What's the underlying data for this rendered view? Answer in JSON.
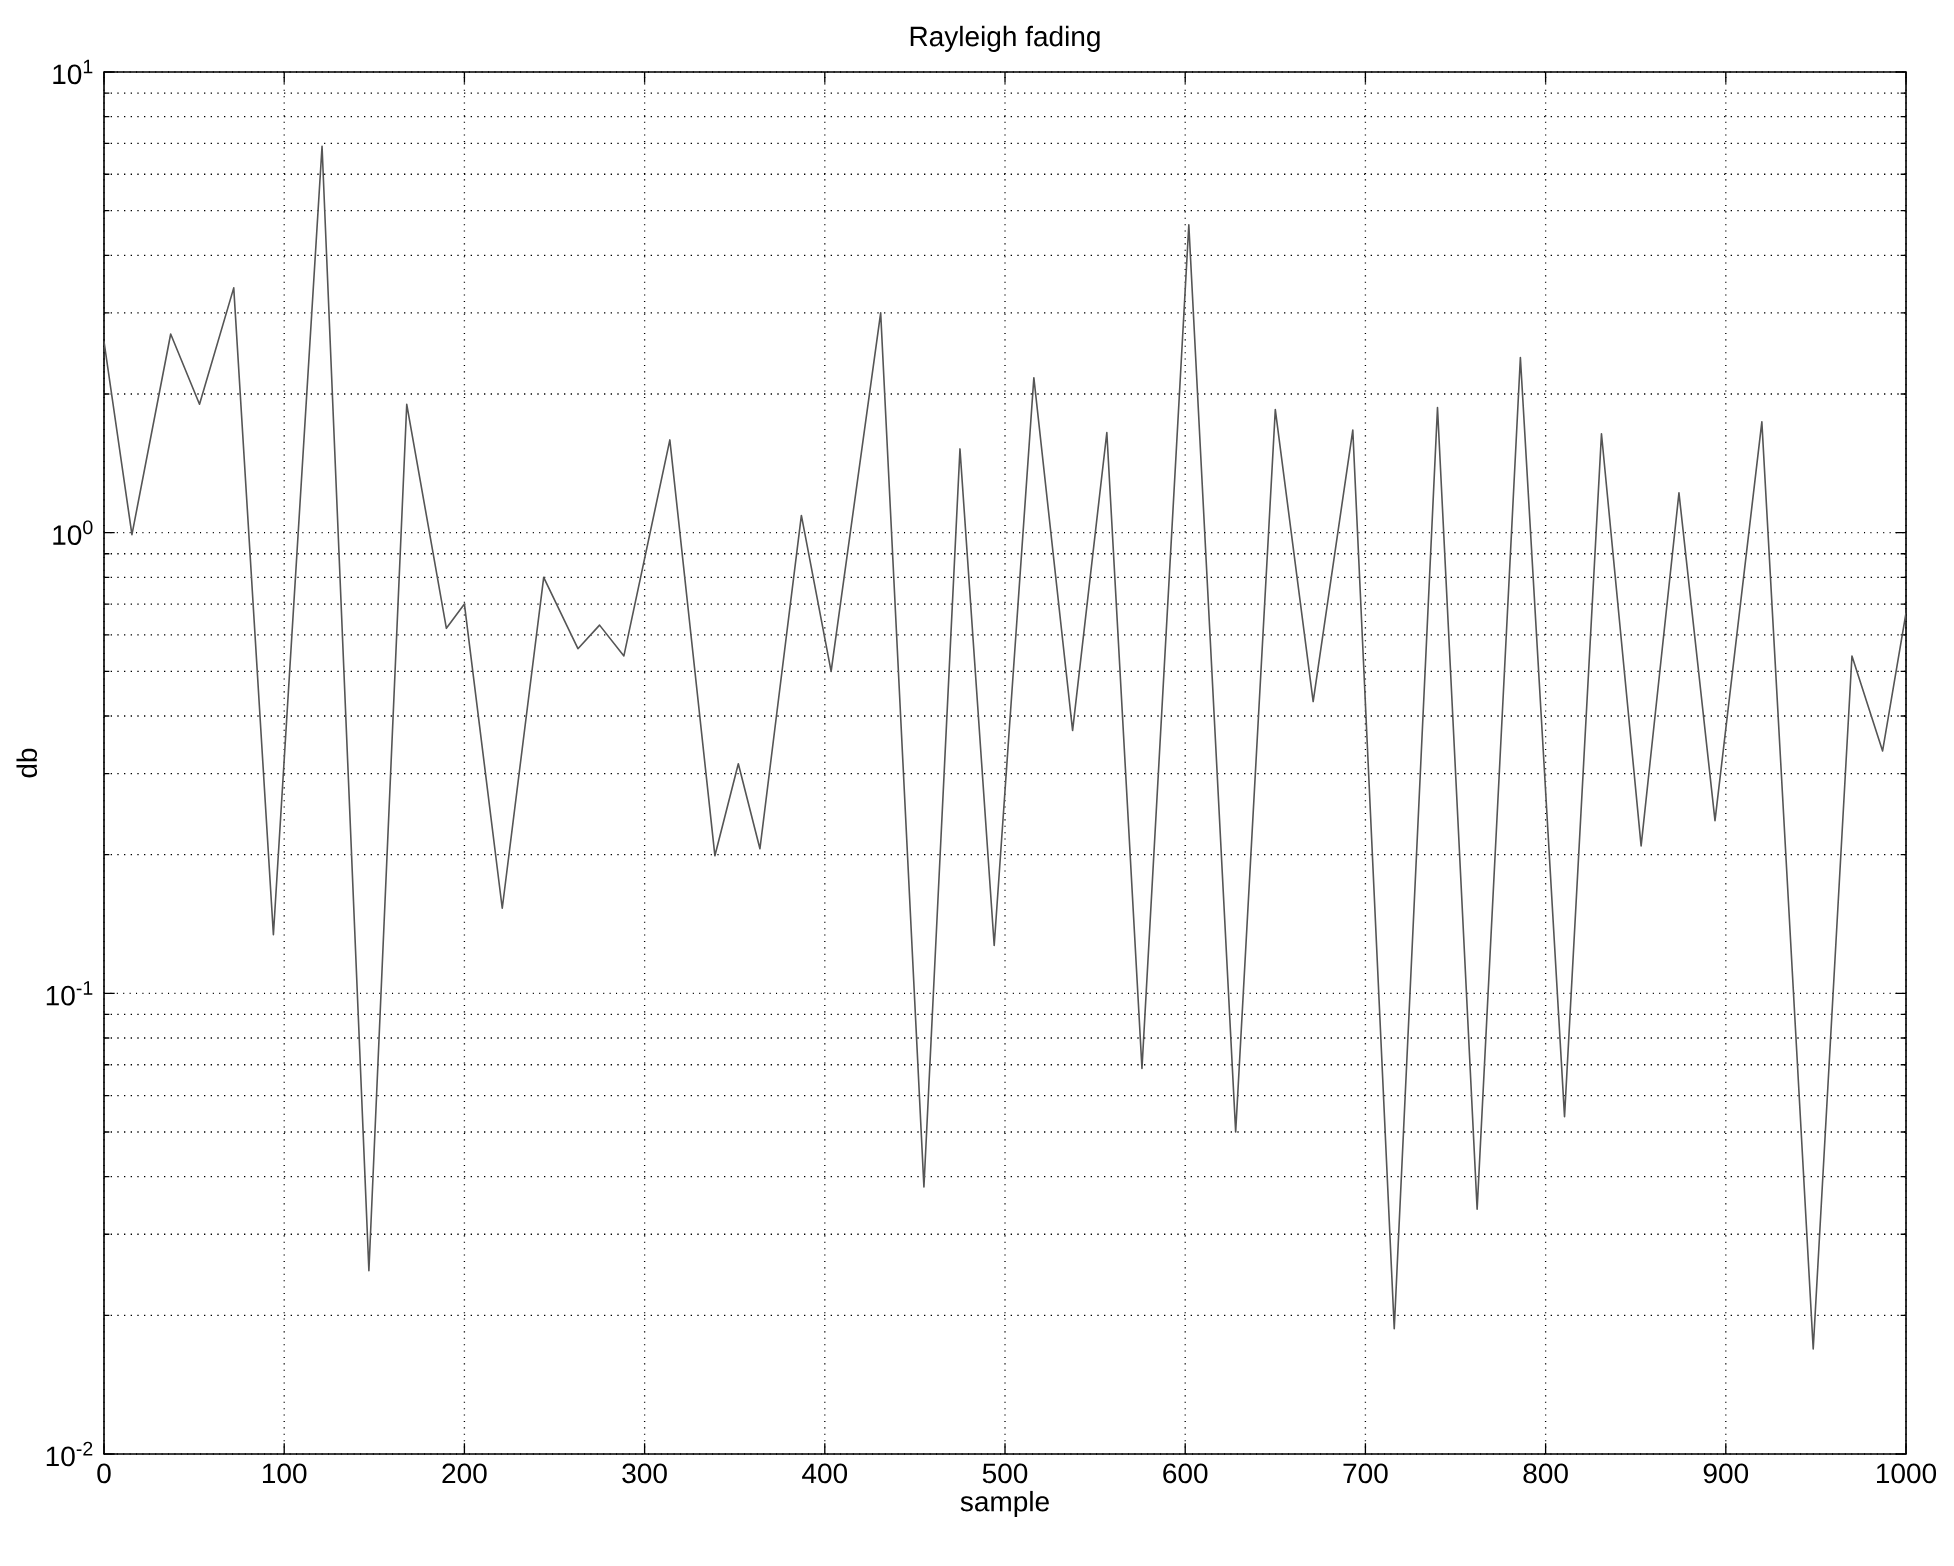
{
  "chart_data": {
    "type": "line",
    "title": "Rayleigh fading",
    "xlabel": "sample",
    "ylabel": "db",
    "log": "y",
    "grid": true,
    "line_style": "solid",
    "marker": "none",
    "xlim": [
      0,
      1000
    ],
    "ylim": [
      0.01,
      10
    ],
    "xticks": [
      0,
      100,
      200,
      300,
      400,
      500,
      600,
      700,
      800,
      900,
      1000
    ],
    "yticks": [
      {
        "value": 0.01,
        "label": "10$^{-2}$"
      },
      {
        "value": 0.1,
        "label": "10$^{-1}$"
      },
      {
        "value": 1,
        "label": "10$^{0}$"
      },
      {
        "value": 10,
        "label": "10$^{1}$"
      }
    ],
    "series": [
      {
        "color": "#555555",
        "x": [
          0,
          15.5,
          37,
          53,
          72,
          94,
          121,
          147,
          168,
          190,
          200,
          221,
          244,
          263,
          275,
          288.5,
          314,
          339,
          352,
          364,
          387,
          403.5,
          431,
          455,
          475,
          494,
          516,
          537.5,
          556.5,
          576,
          602,
          628,
          650,
          671,
          693,
          716,
          740,
          762,
          786,
          810.5,
          831,
          853,
          874,
          894,
          920,
          948.5,
          970,
          987,
          1000
        ],
        "values": [
          2.6,
          0.99,
          2.7,
          1.9,
          3.4,
          0.134,
          6.9,
          0.025,
          1.9,
          0.62,
          0.7,
          0.153,
          0.8,
          0.56,
          0.63,
          0.54,
          1.59,
          0.199,
          0.315,
          0.206,
          1.09,
          0.5,
          3.0,
          0.038,
          1.52,
          0.127,
          2.17,
          0.372,
          1.65,
          0.0687,
          4.66,
          0.05,
          1.85,
          0.43,
          1.67,
          0.0187,
          1.87,
          0.034,
          2.4,
          0.054,
          1.64,
          0.209,
          1.22,
          0.237,
          1.74,
          0.0169,
          0.54,
          0.336,
          0.67
        ]
      }
    ]
  }
}
